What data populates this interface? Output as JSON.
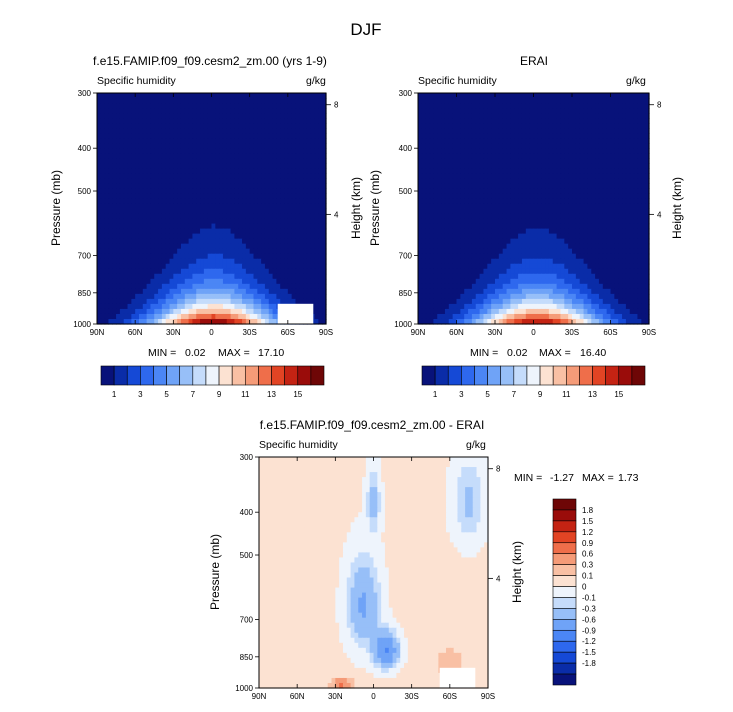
{
  "figure_title": "DJF",
  "chart_data": [
    {
      "type": "heatmap",
      "title": "f.e15.FAMIP.f09_f09.cesm2_zm.00 (yrs 1-9)",
      "left_label": "Specific humidity",
      "right_label": "g/kg",
      "xlabel": "",
      "ylabel": "Pressure (mb)",
      "ylabel_right": "Height (km)",
      "x_ticks": [
        "90N",
        "60N",
        "30N",
        "0",
        "30S",
        "60S",
        "90S"
      ],
      "x_tick_values": [
        90,
        60,
        30,
        0,
        -30,
        -60,
        -90
      ],
      "y_ticks": [
        "300",
        "400",
        "500",
        "700",
        "850",
        "1000"
      ],
      "y_tick_values": [
        300,
        400,
        500,
        700,
        850,
        1000
      ],
      "y_scale": "log",
      "right_ticks": [
        "8",
        "4"
      ],
      "right_tick_values": [
        8,
        4
      ],
      "min_label": "MIN =",
      "min_value": "0.02",
      "max_label": "MAX =",
      "max_value": "17.10",
      "levels": [
        1,
        2,
        3,
        4,
        5,
        6,
        7,
        8,
        9,
        10,
        11,
        12,
        13,
        14,
        15
      ],
      "colorbar_labels": [
        "1",
        "3",
        "5",
        "7",
        "9",
        "11",
        "13",
        "15"
      ],
      "colorbar_orientation": "horizontal"
    },
    {
      "type": "heatmap",
      "title": "ERAI",
      "left_label": "Specific humidity",
      "right_label": "g/kg",
      "xlabel": "",
      "ylabel": "Pressure (mb)",
      "ylabel_right": "Height (km)",
      "x_ticks": [
        "90N",
        "60N",
        "30N",
        "0",
        "30S",
        "60S",
        "90S"
      ],
      "x_tick_values": [
        90,
        60,
        30,
        0,
        -30,
        -60,
        -90
      ],
      "y_ticks": [
        "300",
        "400",
        "500",
        "700",
        "850",
        "1000"
      ],
      "y_tick_values": [
        300,
        400,
        500,
        700,
        850,
        1000
      ],
      "y_scale": "log",
      "right_ticks": [
        "8",
        "4"
      ],
      "right_tick_values": [
        8,
        4
      ],
      "min_label": "MIN =",
      "min_value": "0.02",
      "max_label": "MAX =",
      "max_value": "16.40",
      "levels": [
        1,
        2,
        3,
        4,
        5,
        6,
        7,
        8,
        9,
        10,
        11,
        12,
        13,
        14,
        15
      ],
      "colorbar_labels": [
        "1",
        "3",
        "5",
        "7",
        "9",
        "11",
        "13",
        "15"
      ],
      "colorbar_orientation": "horizontal"
    },
    {
      "type": "heatmap",
      "title": "f.e15.FAMIP.f09_f09.cesm2_zm.00 - ERAI",
      "left_label": "Specific humidity",
      "right_label": "g/kg",
      "xlabel": "",
      "ylabel": "Pressure (mb)",
      "ylabel_right": "Height (km)",
      "x_ticks": [
        "90N",
        "60N",
        "30N",
        "0",
        "30S",
        "60S",
        "90S"
      ],
      "x_tick_values": [
        90,
        60,
        30,
        0,
        -30,
        -60,
        -90
      ],
      "y_ticks": [
        "300",
        "400",
        "500",
        "700",
        "850",
        "1000"
      ],
      "y_tick_values": [
        300,
        400,
        500,
        700,
        850,
        1000
      ],
      "y_scale": "log",
      "right_ticks": [
        "8",
        "4"
      ],
      "right_tick_values": [
        8,
        4
      ],
      "min_label": "MIN =",
      "min_value": "-1.27",
      "max_label": "MAX =",
      "max_value": "1.73",
      "levels": [
        -1.8,
        -1.5,
        -1.2,
        -0.9,
        -0.6,
        -0.3,
        -0.1,
        0,
        0.1,
        0.3,
        0.6,
        0.9,
        1.2,
        1.5,
        1.8
      ],
      "colorbar_labels": [
        "1.8",
        "1.5",
        "1.2",
        "0.9",
        "0.6",
        "0.3",
        "0.1",
        "0",
        "-0.1",
        "-0.3",
        "-0.6",
        "-0.9",
        "-1.2",
        "-1.5",
        "-1.8"
      ],
      "colorbar_orientation": "vertical"
    }
  ],
  "colors": {
    "palette": [
      "#08127a",
      "#0a2ca8",
      "#1549d6",
      "#2e68ee",
      "#4b86f5",
      "#6fa3f7",
      "#97bff8",
      "#c5dcfb",
      "#eef4fc",
      "#fce2d2",
      "#f9c0a4",
      "#f59b78",
      "#ef6e4a",
      "#e24424",
      "#c42313",
      "#9a0c0a",
      "#6e0606"
    ],
    "diff_palette": [
      "#6e0606",
      "#9a0c0a",
      "#c42313",
      "#e24424",
      "#ef6e4a",
      "#f59b78",
      "#f9c0a4",
      "#fce2d2",
      "#eef4fc",
      "#c5dcfb",
      "#97bff8",
      "#6fa3f7",
      "#4b86f5",
      "#2e68ee",
      "#1549d6",
      "#0a2ca8",
      "#08127a"
    ],
    "missing": "#ffffff"
  }
}
